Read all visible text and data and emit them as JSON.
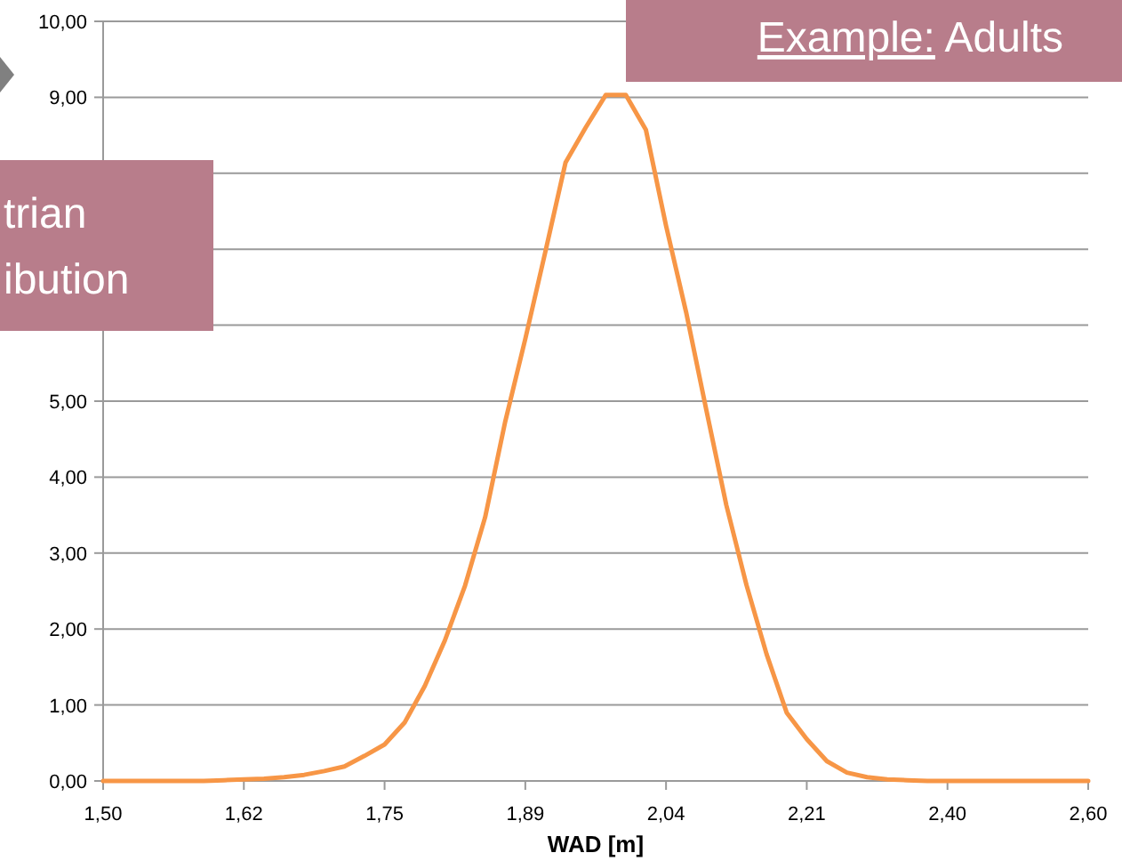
{
  "chart_data": {
    "type": "line",
    "xlabel": "WAD [m]",
    "categories": [
      "1,50",
      null,
      null,
      null,
      null,
      null,
      null,
      "1,62",
      null,
      null,
      null,
      null,
      null,
      null,
      "1,75",
      null,
      null,
      null,
      null,
      null,
      null,
      "1,89",
      null,
      null,
      null,
      null,
      null,
      null,
      "2,04",
      null,
      null,
      null,
      null,
      null,
      null,
      "2,21",
      null,
      null,
      null,
      null,
      null,
      null,
      "2,40",
      null,
      null,
      null,
      null,
      null,
      null,
      "2,60"
    ],
    "series": [
      {
        "color": "#f79646",
        "values": [
          0,
          0,
          0,
          0,
          0,
          0,
          0.01,
          0.02,
          0.03,
          0.05,
          0.08,
          0.13,
          0.19,
          0.33,
          0.48,
          0.77,
          1.25,
          1.85,
          2.57,
          3.47,
          4.73,
          5.82,
          6.97,
          8.14,
          8.6,
          9.03,
          9.03,
          8.57,
          7.31,
          6.17,
          4.89,
          3.63,
          2.58,
          1.67,
          0.9,
          0.55,
          0.26,
          0.11,
          0.05,
          0.02,
          0.01,
          0,
          0,
          0,
          0,
          0,
          0,
          0,
          0,
          0
        ]
      }
    ],
    "ylim": [
      0,
      10
    ],
    "yticks": [
      {
        "value": 0,
        "label": "0,00"
      },
      {
        "value": 1,
        "label": "1,00"
      },
      {
        "value": 2,
        "label": "2,00"
      },
      {
        "value": 3,
        "label": "3,00"
      },
      {
        "value": 4,
        "label": "4,00"
      },
      {
        "value": 5,
        "label": "5,00"
      },
      {
        "value": 6,
        "label": null
      },
      {
        "value": 7,
        "label": null
      },
      {
        "value": 8,
        "label": null
      },
      {
        "value": 9,
        "label": "9,00"
      },
      {
        "value": 10,
        "label": "10,00"
      }
    ],
    "grid": "y",
    "marker": "none",
    "line_style": "solid",
    "annotations": [
      "Example: Adults",
      "trian\nibution"
    ]
  }
}
